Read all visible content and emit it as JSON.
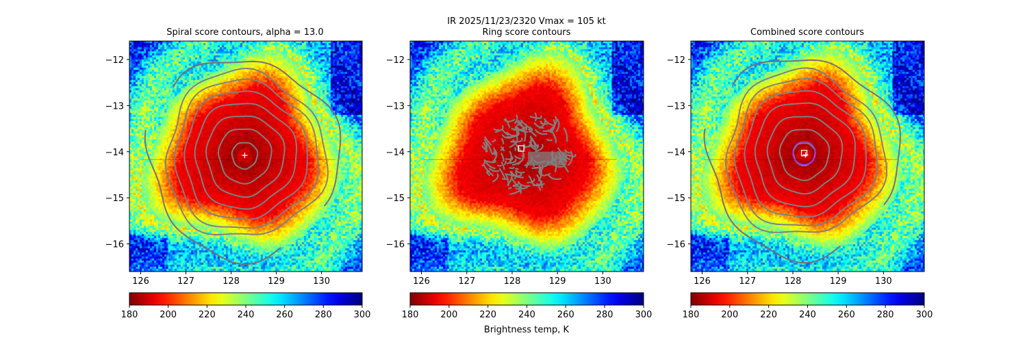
{
  "figure": {
    "suptitle_line1": "IR  2025/11/23/2320    Vmax = 105 kt",
    "colorbar_label": "Brightness temp, K"
  },
  "colors": {
    "contour": "#808080",
    "contour_outer": "#7a6e7a",
    "center_marker": "#ffffff",
    "rmw_circle": "#9b30ff"
  },
  "chart_data": [
    {
      "type": "heatmap",
      "title": "Spiral score contours, alpha = 13.0",
      "variable": "IR brightness temperature",
      "xlim": [
        125.75,
        130.9
      ],
      "ylim": [
        -16.6,
        -11.6
      ],
      "xticks": [
        126,
        127,
        128,
        129,
        130
      ],
      "yticks": [
        -12,
        -13,
        -14,
        -15,
        -16
      ],
      "clim": [
        180,
        300
      ],
      "colormap": "jet_r",
      "colorbar_ticks": [
        180,
        200,
        220,
        240,
        260,
        280,
        300
      ],
      "storm_center": {
        "lon": 128.3,
        "lat": -14.08
      },
      "overlay": "spiral score contours",
      "markers": [
        {
          "symbol": "+",
          "lon": 128.3,
          "lat": -14.08
        }
      ]
    },
    {
      "type": "heatmap",
      "title": "Ring score contours",
      "variable": "IR brightness temperature",
      "xlim": [
        125.75,
        130.9
      ],
      "ylim": [
        -16.6,
        -11.6
      ],
      "xticks": [
        126,
        127,
        128,
        129,
        130
      ],
      "yticks": [
        -12,
        -13,
        -14,
        -15,
        -16
      ],
      "clim": [
        180,
        300
      ],
      "colormap": "jet_r",
      "colorbar_ticks": [
        180,
        200,
        220,
        240,
        260,
        280,
        300
      ],
      "storm_center": {
        "lon": 128.3,
        "lat": -14.08
      },
      "overlay": "ring score contours",
      "markers": [
        {
          "symbol": "square",
          "lon": 128.2,
          "lat": -13.93
        }
      ]
    },
    {
      "type": "heatmap",
      "title": "Combined score contours",
      "variable": "IR brightness temperature",
      "xlim": [
        125.75,
        130.9
      ],
      "ylim": [
        -16.6,
        -11.6
      ],
      "xticks": [
        126,
        127,
        128,
        129,
        130
      ],
      "yticks": [
        -12,
        -13,
        -14,
        -15,
        -16
      ],
      "clim": [
        180,
        300
      ],
      "colormap": "jet_r",
      "colorbar_ticks": [
        180,
        200,
        220,
        240,
        260,
        280,
        300
      ],
      "storm_center": {
        "lon": 128.25,
        "lat": -14.05
      },
      "overlay": "combined score contours",
      "markers": [
        {
          "symbol": "square",
          "lon": 128.25,
          "lat": -14.03
        },
        {
          "symbol": "+",
          "lon": 128.28,
          "lat": -14.07
        },
        {
          "symbol": "circle",
          "lon": 128.25,
          "lat": -14.03,
          "radius_deg": 0.25
        }
      ]
    }
  ]
}
